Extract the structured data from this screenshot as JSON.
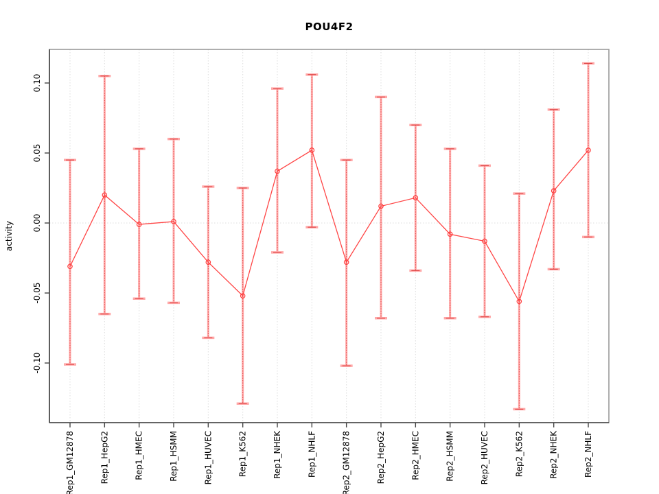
{
  "chart_data": {
    "type": "line",
    "title": "POU4F2",
    "xlabel": "",
    "ylabel": "activity",
    "categories": [
      "Rep1_GM12878",
      "Rep1_HepG2",
      "Rep1_HMEC",
      "Rep1_HSMM",
      "Rep1_HUVEC",
      "Rep1_K562",
      "Rep1_NHEK",
      "Rep1_NHLF",
      "Rep2_GM12878",
      "Rep2_HepG2",
      "Rep2_HMEC",
      "Rep2_HSMM",
      "Rep2_HUVEC",
      "Rep2_K562",
      "Rep2_NHEK",
      "Rep2_NHLF"
    ],
    "series": [
      {
        "name": "activity",
        "values": [
          -0.031,
          0.02,
          -0.001,
          0.001,
          -0.028,
          -0.052,
          0.037,
          0.052,
          -0.028,
          0.012,
          0.018,
          -0.008,
          -0.013,
          -0.056,
          0.023,
          0.052
        ],
        "err_high": [
          0.045,
          0.105,
          0.053,
          0.06,
          0.026,
          0.025,
          0.096,
          0.106,
          0.045,
          0.09,
          0.07,
          0.053,
          0.041,
          0.021,
          0.081,
          0.114
        ],
        "err_low": [
          -0.101,
          -0.065,
          -0.054,
          -0.057,
          -0.082,
          -0.129,
          -0.021,
          -0.003,
          -0.102,
          -0.068,
          -0.034,
          -0.068,
          -0.067,
          -0.133,
          -0.033,
          -0.01
        ]
      }
    ],
    "ylim": [
      -0.1426,
      0.124
    ],
    "yticks": [
      {
        "label": "0.10",
        "value": 0.1
      },
      {
        "label": "0.05",
        "value": 0.05
      },
      {
        "label": "0.00",
        "value": 0.0
      },
      {
        "label": "-0.05",
        "value": -0.05
      },
      {
        "label": "-0.10",
        "value": -0.1
      }
    ],
    "legend": "none",
    "grid": {
      "vertical_dotted": true,
      "zero_line_dotted": true
    },
    "colors": {
      "line": "#ff4545",
      "marker": "#ff3b3b",
      "errorbar_outer": "#ffa8a8",
      "errorbar_inner": "#e04b4b",
      "grid": "#dcdcdc",
      "box": "#9a9a9a",
      "axis": "#444444",
      "text": "#000000"
    }
  }
}
